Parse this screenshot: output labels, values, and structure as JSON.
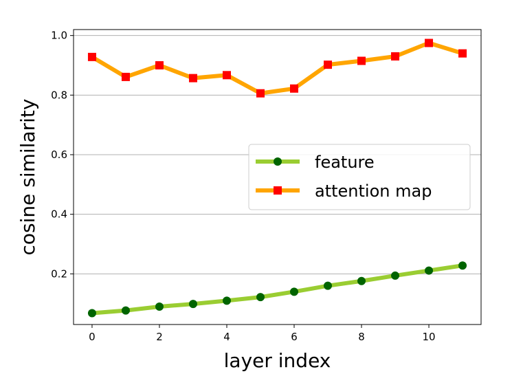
{
  "chart_data": {
    "type": "line",
    "xlabel": "layer index",
    "ylabel": "cosine similarity",
    "xlim": [
      -0.55,
      11.55
    ],
    "ylim": [
      0.03,
      1.02
    ],
    "xticks": [
      0,
      2,
      4,
      6,
      8,
      10
    ],
    "yticks": [
      0.2,
      0.4,
      0.6,
      0.8,
      1.0
    ],
    "ytick_labels": [
      "0.2",
      "0.4",
      "0.6",
      "0.8",
      "1.0"
    ],
    "grid": "horizontal",
    "legend_position": "center-right",
    "x": [
      0,
      1,
      2,
      3,
      4,
      5,
      6,
      7,
      8,
      9,
      10,
      11
    ],
    "series": [
      {
        "name": "feature",
        "values": [
          0.068,
          0.077,
          0.09,
          0.099,
          0.11,
          0.122,
          0.14,
          0.16,
          0.176,
          0.194,
          0.211,
          0.228
        ],
        "line_color": "#9acd32",
        "marker_color": "#006400",
        "marker": "circle"
      },
      {
        "name": "attention map",
        "values": [
          0.928,
          0.861,
          0.9,
          0.857,
          0.867,
          0.806,
          0.822,
          0.902,
          0.915,
          0.93,
          0.975,
          0.94
        ],
        "line_color": "#ffa500",
        "marker_color": "#ff0000",
        "marker": "square"
      }
    ]
  }
}
